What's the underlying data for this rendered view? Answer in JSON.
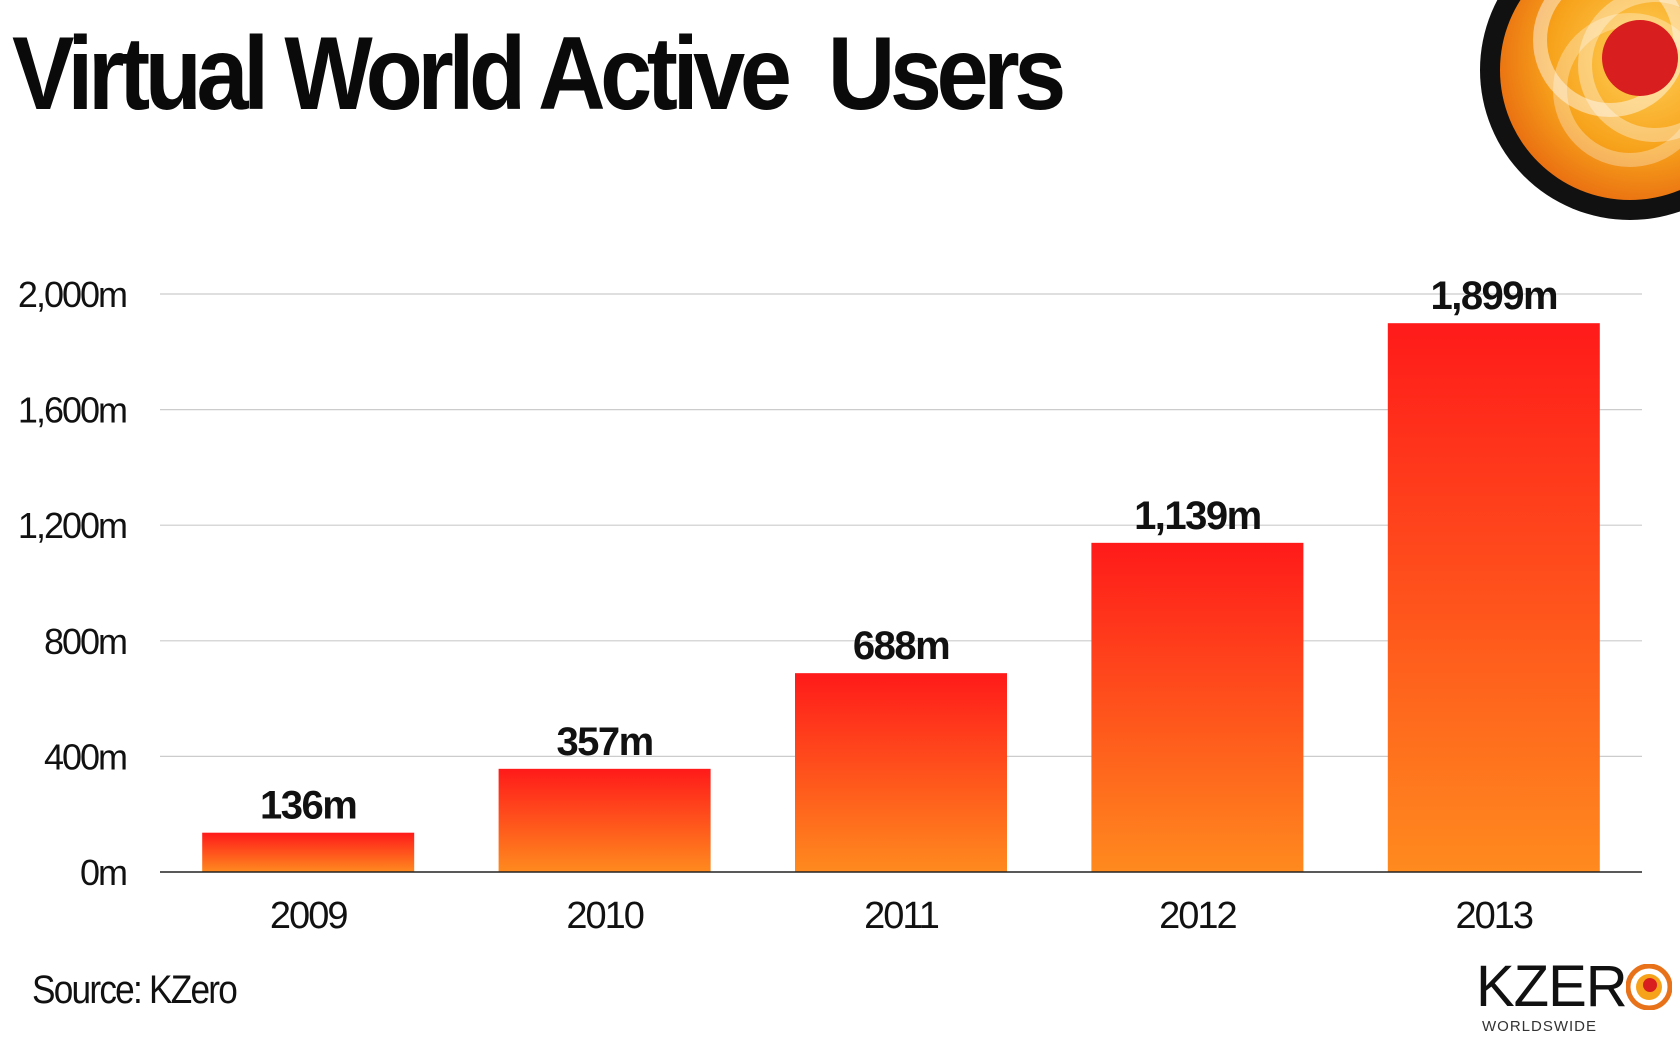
{
  "title": "Virtual World Active  Users",
  "source": "Source: KZero",
  "logo": {
    "wordmark": "KZER",
    "subtitle": "WORLDSWIDE"
  },
  "colors": {
    "bar_top": "#ff1a1a",
    "bar_bottom": "#ff8a1e",
    "grid": "#cccccc",
    "axis": "#222222",
    "text": "#111111"
  },
  "icons": [
    "corner-emblem-icon",
    "kzero-logo-icon"
  ],
  "chart_data": {
    "type": "bar",
    "title": "Virtual World Active  Users",
    "categories": [
      "2009",
      "2010",
      "2011",
      "2012",
      "2013"
    ],
    "values": [
      136,
      357,
      688,
      1139,
      1899
    ],
    "data_labels": [
      "136m",
      "357m",
      "688m",
      "1,139m",
      "1,899m"
    ],
    "yticks": [
      0,
      400,
      800,
      1200,
      1600,
      2000
    ],
    "ytick_labels": [
      "0m",
      "400m",
      "800m",
      "1,200m",
      "1,600m",
      "2,000m"
    ],
    "ylim": [
      0,
      2000
    ],
    "xlabel": "",
    "ylabel": "",
    "grid": true,
    "legend": "none"
  }
}
